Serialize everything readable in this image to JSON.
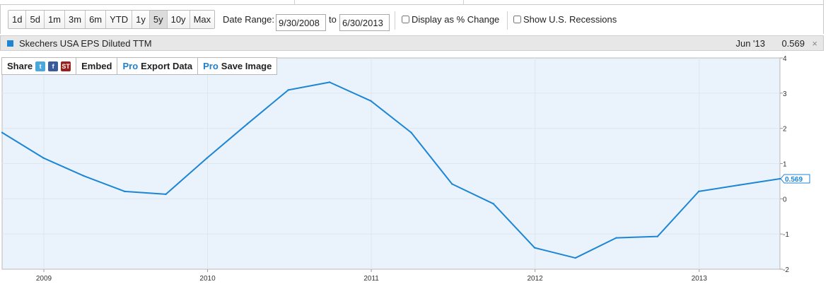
{
  "controls": {
    "ranges": [
      "1d",
      "5d",
      "1m",
      "3m",
      "6m",
      "YTD",
      "1y",
      "5y",
      "10y",
      "Max"
    ],
    "active_range": "5y",
    "date_range_label": "Date Range:",
    "start_date": "9/30/2008",
    "to_label": "to",
    "end_date": "6/30/2013",
    "pct_change_label": "Display as % Change",
    "recessions_label": "Show U.S. Recessions"
  },
  "legend": {
    "series_name": "Skechers USA EPS Diluted TTM",
    "last_date": "Jun '13",
    "last_value": "0.569",
    "close_glyph": "×",
    "swatch_color": "#1c86d5"
  },
  "toolbar": {
    "share_label": "Share",
    "twitter_icon": "t",
    "facebook_icon": "f",
    "st_icon": "ST",
    "embed_label": "Embed",
    "pro_label": "Pro",
    "export_label": "Export Data",
    "save_label": "Save Image"
  },
  "chart_data": {
    "type": "line",
    "title": "",
    "xlabel": "",
    "ylabel": "",
    "x_ticks": [
      "2009",
      "2010",
      "2011",
      "2012",
      "2013"
    ],
    "y_ticks": [
      "4",
      "3",
      "2",
      "1",
      "0",
      "-1",
      "-2"
    ],
    "ylim": [
      -2,
      4
    ],
    "xlim": [
      "2008-09-30",
      "2013-06-30"
    ],
    "grid": "horizontal",
    "line_color": "#1c86d5",
    "background_color": "#eaf2fc",
    "end_label": "0.569",
    "series": [
      {
        "name": "Skechers USA EPS Diluted TTM",
        "x": [
          "2008-09-30",
          "2008-12-31",
          "2009-03-31",
          "2009-06-30",
          "2009-09-30",
          "2009-12-31",
          "2010-03-31",
          "2010-06-30",
          "2010-09-30",
          "2010-12-31",
          "2011-03-31",
          "2011-06-30",
          "2011-09-30",
          "2011-12-31",
          "2012-03-31",
          "2012-06-30",
          "2012-09-30",
          "2012-12-31",
          "2013-03-31",
          "2013-06-30"
        ],
        "values": [
          1.88,
          1.16,
          0.65,
          0.21,
          0.13,
          1.16,
          2.13,
          3.09,
          3.31,
          2.78,
          1.88,
          0.42,
          -0.14,
          -1.39,
          -1.68,
          -1.11,
          -1.07,
          0.21,
          0.39,
          0.569
        ]
      }
    ]
  }
}
